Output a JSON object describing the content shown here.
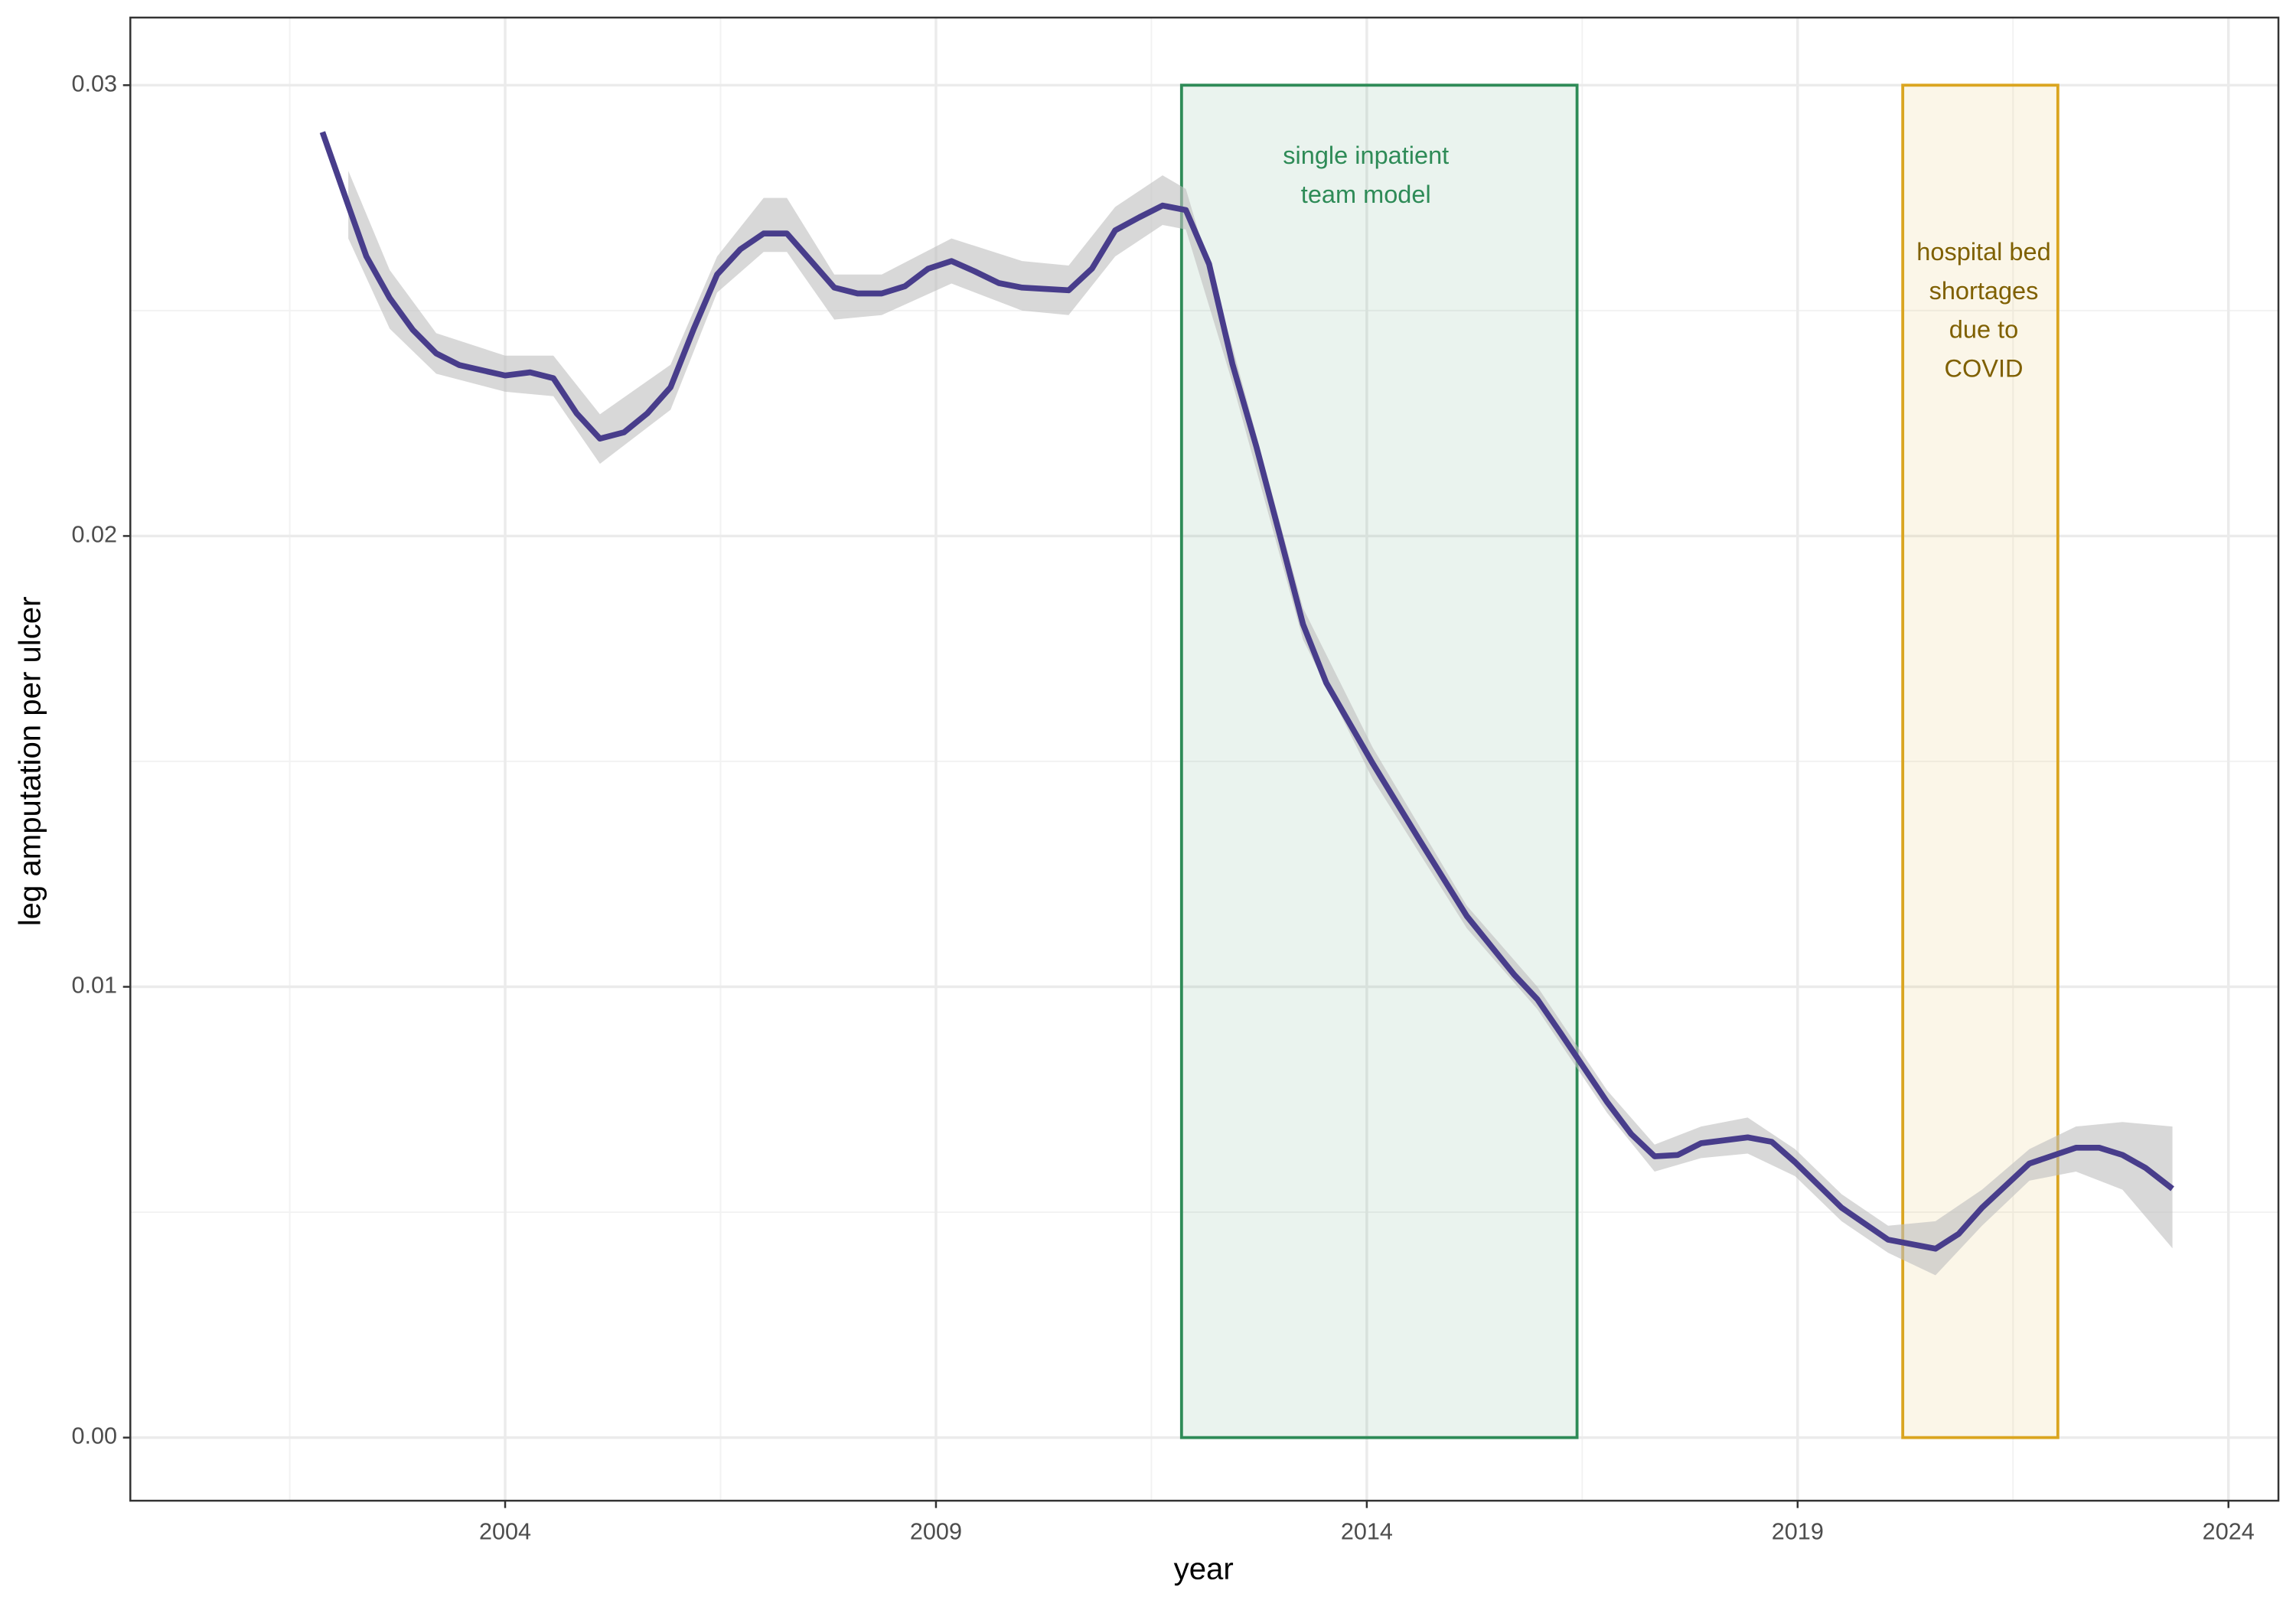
{
  "chart_data": {
    "type": "line",
    "xlabel": "year",
    "ylabel": "leg amputation per ulcer",
    "xlim": [
      1999.65,
      2024.58
    ],
    "ylim": [
      -0.0014,
      0.0315
    ],
    "xticks": [
      2004,
      2009,
      2014,
      2019,
      2024
    ],
    "yticks": [
      {
        "value": 0,
        "label": "0.00"
      },
      {
        "value": 0.01,
        "label": "0.01"
      },
      {
        "value": 0.02,
        "label": "0.02"
      },
      {
        "value": 0.03,
        "label": "0.03"
      }
    ],
    "minor_xticks": [
      2001.5,
      2006.5,
      2011.5,
      2016.5,
      2021.5
    ],
    "minor_yticks": [
      0.005,
      0.015,
      0.025
    ],
    "grid": true,
    "series": [
      {
        "color": "#483d8b",
        "x": [
          2001.88,
          2002.18,
          2002.39,
          2002.66,
          2002.93,
          2003.2,
          2003.47,
          2004.0,
          2004.29,
          2004.56,
          2004.83,
          2005.1,
          2005.38,
          2005.65,
          2005.92,
          2006.19,
          2006.46,
          2006.73,
          2007.0,
          2007.27,
          2007.55,
          2007.82,
          2008.09,
          2008.37,
          2008.64,
          2008.91,
          2009.18,
          2009.45,
          2009.73,
          2010.0,
          2010.54,
          2010.81,
          2011.08,
          2011.36,
          2011.63,
          2011.9,
          2012.17,
          2012.44,
          2012.72,
          2012.99,
          2013.26,
          2013.53,
          2014.07,
          2014.62,
          2015.16,
          2015.71,
          2015.98,
          2016.25,
          2016.79,
          2017.07,
          2017.34,
          2017.61,
          2017.88,
          2018.42,
          2018.7,
          2018.97,
          2019.51,
          2020.05,
          2020.6,
          2020.87,
          2021.14,
          2021.69,
          2022.23,
          2022.5,
          2022.77,
          2023.04,
          2023.35
        ],
        "values": [
          0.02896,
          0.02733,
          0.0262,
          0.02528,
          0.02457,
          0.02405,
          0.02379,
          0.02356,
          0.02363,
          0.0235,
          0.02272,
          0.02216,
          0.0223,
          0.02272,
          0.0233,
          0.0246,
          0.0258,
          0.02636,
          0.02671,
          0.02671,
          0.0261,
          0.02551,
          0.02538,
          0.02538,
          0.02554,
          0.02593,
          0.0261,
          0.02587,
          0.02561,
          0.02551,
          0.02545,
          0.02593,
          0.02678,
          0.02707,
          0.02733,
          0.02723,
          0.02603,
          0.02382,
          0.02197,
          0.02002,
          0.01804,
          0.01674,
          0.01495,
          0.01323,
          0.01157,
          0.01027,
          0.00972,
          0.00897,
          0.00744,
          0.00673,
          0.00624,
          0.00627,
          0.00653,
          0.00666,
          0.00656,
          0.00611,
          0.0051,
          0.00439,
          0.00419,
          0.00452,
          0.0051,
          0.00608,
          0.00643,
          0.00643,
          0.00627,
          0.00598,
          0.00552
        ]
      }
    ],
    "ribbon": {
      "color": "#bebebe",
      "x": [
        2002.18,
        2002.66,
        2003.2,
        2004.0,
        2004.56,
        2005.1,
        2005.92,
        2006.46,
        2007.0,
        2007.27,
        2007.82,
        2008.37,
        2009.18,
        2010.0,
        2010.54,
        2011.08,
        2011.63,
        2011.9,
        2012.44,
        2013.26,
        2014.07,
        2015.16,
        2015.98,
        2016.79,
        2017.34,
        2017.88,
        2018.42,
        2018.97,
        2019.51,
        2020.05,
        2020.6,
        2021.14,
        2021.69,
        2022.23,
        2022.77,
        2023.35
      ],
      "lower": [
        0.0266,
        0.0246,
        0.0236,
        0.0232,
        0.0231,
        0.0216,
        0.0228,
        0.0254,
        0.0263,
        0.0263,
        0.0248,
        0.0249,
        0.0256,
        0.025,
        0.0249,
        0.0262,
        0.0269,
        0.0268,
        0.0234,
        0.0177,
        0.0146,
        0.0113,
        0.0095,
        0.0072,
        0.0059,
        0.0062,
        0.0063,
        0.0058,
        0.0048,
        0.0041,
        0.0036,
        0.0047,
        0.0057,
        0.0059,
        0.0055,
        0.0042
      ],
      "upper": [
        0.0281,
        0.0259,
        0.0245,
        0.024,
        0.024,
        0.0227,
        0.0238,
        0.0262,
        0.0275,
        0.0275,
        0.0258,
        0.0258,
        0.0266,
        0.0261,
        0.026,
        0.0273,
        0.028,
        0.0277,
        0.0242,
        0.0184,
        0.0153,
        0.0118,
        0.01,
        0.0077,
        0.0065,
        0.0069,
        0.0071,
        0.0064,
        0.0054,
        0.0047,
        0.0048,
        0.0055,
        0.0064,
        0.0069,
        0.007,
        0.0069
      ]
    },
    "annotations": [
      {
        "xmin": 2011.85,
        "xmax": 2016.44,
        "ymin": 0,
        "ymax": 0.03,
        "color": "#2e8b57",
        "text_color": "#2e8b57",
        "x": 2013.99,
        "y": 0.0284,
        "lines": [
          "single inpatient",
          "team model"
        ]
      },
      {
        "xmin": 2020.22,
        "xmax": 2022.02,
        "ymin": 0,
        "ymax": 0.03,
        "color": "#daa520",
        "text_color": "#7f6000",
        "x": 2021.16,
        "y": 0.02626,
        "lines": [
          "hospital bed",
          "shortages",
          "due to",
          "COVID"
        ]
      }
    ]
  }
}
